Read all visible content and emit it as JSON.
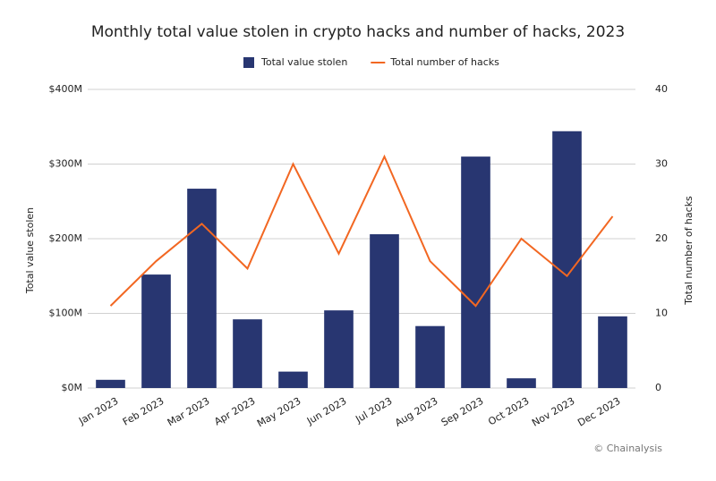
{
  "chart_data": {
    "type": "bar-line",
    "title": "Monthly total value stolen in crypto hacks and number of hacks, 2023",
    "categories": [
      "Jan 2023",
      "Feb 2023",
      "Mar 2023",
      "Apr 2023",
      "May 2023",
      "Jun 2023",
      "Jul 2023",
      "Aug 2023",
      "Sep 2023",
      "Oct 2023",
      "Nov 2023",
      "Dec 2023"
    ],
    "series": [
      {
        "name": "Total value stolen",
        "type": "bar",
        "color": "#283671",
        "values": [
          11,
          152,
          267,
          92,
          22,
          104,
          206,
          83,
          310,
          13,
          344,
          96
        ]
      },
      {
        "name": "Total number of hacks",
        "type": "line",
        "axis": "y2",
        "color": "#f26722",
        "values": [
          11,
          17,
          22,
          16,
          30,
          18,
          31,
          17,
          11,
          20,
          15,
          23
        ]
      }
    ],
    "y_label": "Total value stolen",
    "y2_label": "Total number of hacks",
    "ylim": [
      0,
      400
    ],
    "yticks": [
      {
        "value": 0,
        "label": "$0M"
      },
      {
        "value": 100,
        "label": "$100M"
      },
      {
        "value": 200,
        "label": "$200M"
      },
      {
        "value": 300,
        "label": "$300M"
      },
      {
        "value": 400,
        "label": "$400M"
      }
    ],
    "y2lim": [
      0,
      40
    ],
    "y2ticks": [
      0,
      10,
      20,
      30,
      40
    ],
    "grid": true,
    "legend": "top",
    "source": "© Chainalysis"
  }
}
